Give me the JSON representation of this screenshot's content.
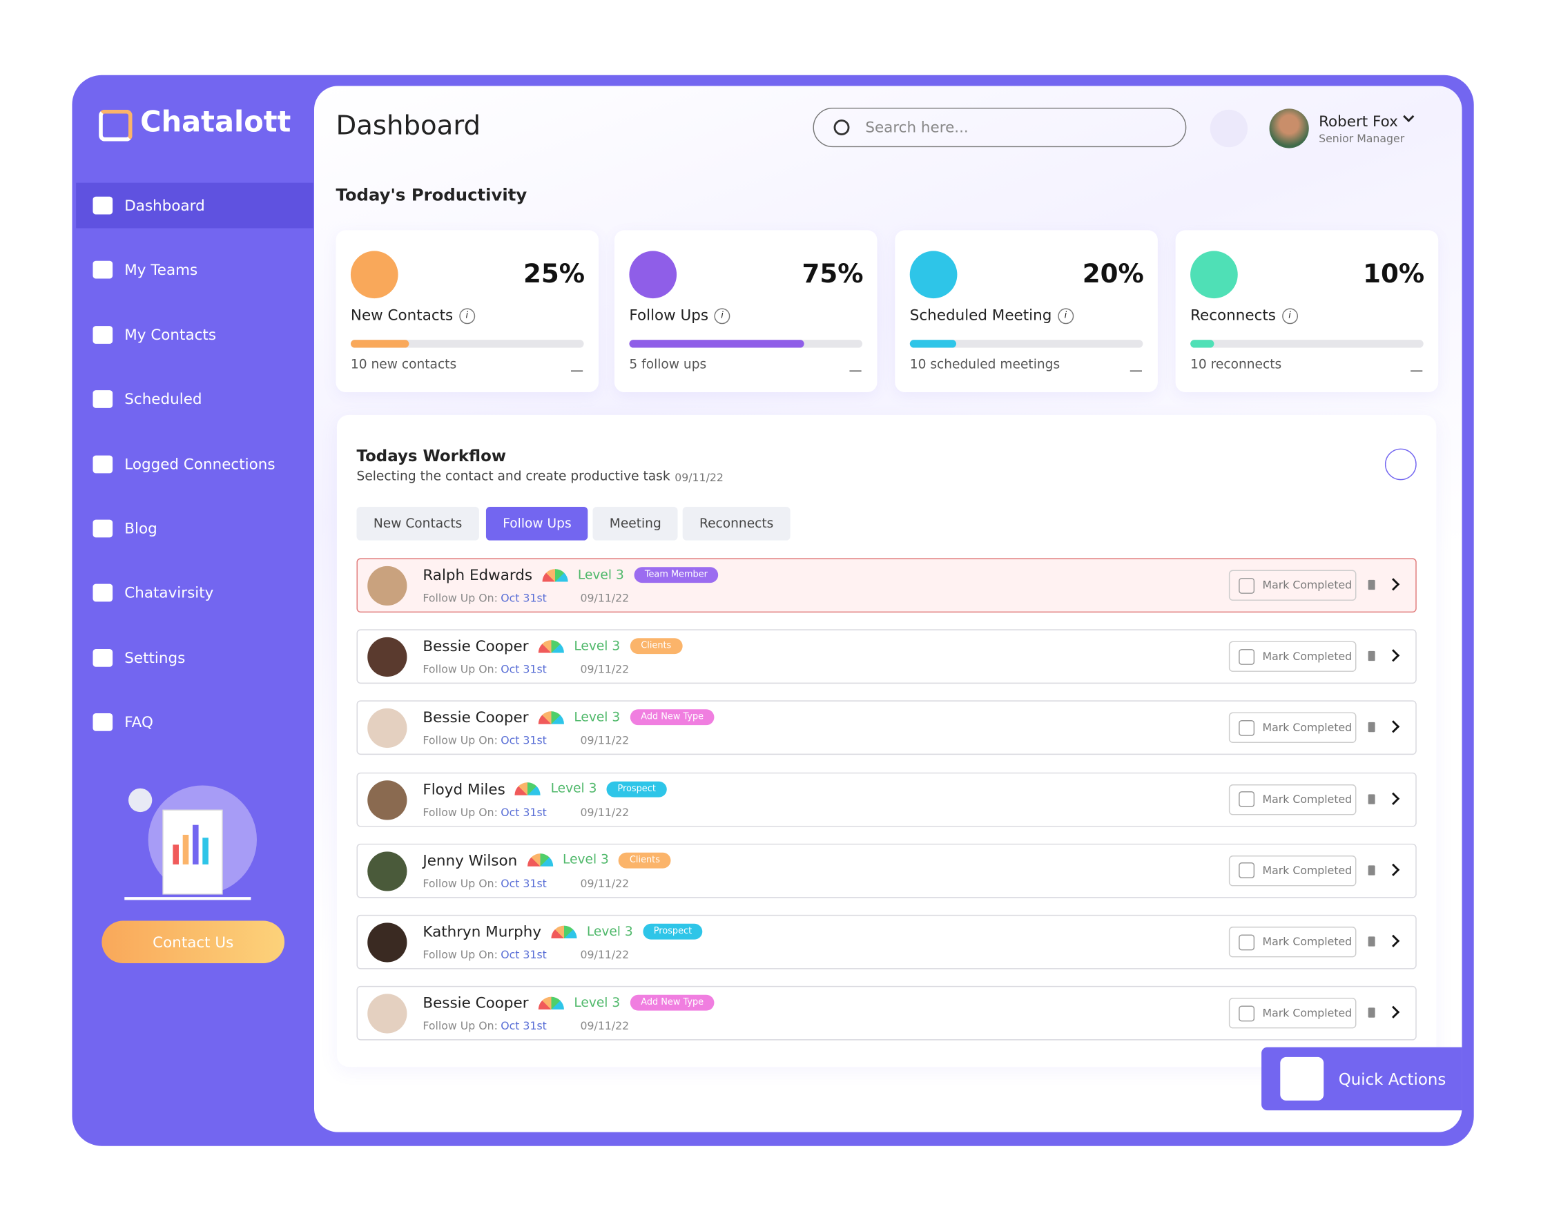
{
  "brand": "Chatalott",
  "nav": [
    "Dashboard",
    "My Teams",
    "My Contacts",
    "Scheduled",
    "Logged Connections",
    "Blog",
    "Chatavirsity",
    "Settings",
    "FAQ"
  ],
  "contact_button": "Contact Us",
  "header": {
    "title": "Dashboard",
    "search_placeholder": "Search here...",
    "user_name": "Robert Fox",
    "user_role": "Senior Manager"
  },
  "productivity": {
    "title": "Today's Productivity",
    "cards": [
      {
        "percent": "25%",
        "label": "New Contacts",
        "info": "i",
        "note": "10 new contacts",
        "color": "#f9a85a"
      },
      {
        "percent": "75%",
        "label": "Follow Ups",
        "info": "i",
        "note": "5 follow ups",
        "color": "#8f5ee8"
      },
      {
        "percent": "20%",
        "label": "Scheduled Meeting",
        "info": "i",
        "note": "10 scheduled meetings",
        "color": "#2ec5e8"
      },
      {
        "percent": "10%",
        "label": "Reconnects",
        "info": "i",
        "note": "10 reconnects",
        "color": "#4fe0b6"
      }
    ]
  },
  "workflow": {
    "title": "Todays Workflow",
    "subtitle": "Selecting the contact and create productive task",
    "date": "09/11/22",
    "tabs": [
      "New Contacts",
      "Follow Ups",
      "Meeting",
      "Reconnects"
    ],
    "rows": [
      {
        "name": "Ralph Edwards",
        "level": "Level 3",
        "tag": "Team Member",
        "tag_color": "#9b6cf0",
        "follow_label": "Follow Up On:",
        "follow_date": "Oct 31st",
        "date": "09/11/22",
        "action": "Mark Completed"
      },
      {
        "name": "Bessie Cooper",
        "level": "Level 3",
        "tag": "Clients",
        "tag_color": "#fbb46a",
        "follow_label": "Follow Up On:",
        "follow_date": "Oct 31st",
        "date": "09/11/22",
        "action": "Mark Completed"
      },
      {
        "name": "Bessie Cooper",
        "level": "Level 3",
        "tag": "Add New Type",
        "tag_color": "#f07ee0",
        "follow_label": "Follow Up On:",
        "follow_date": "Oct 31st",
        "date": "09/11/22",
        "action": "Mark Completed"
      },
      {
        "name": "Floyd Miles",
        "level": "Level 3",
        "tag": "Prospect",
        "tag_color": "#2ec5e8",
        "follow_label": "Follow Up On:",
        "follow_date": "Oct 31st",
        "date": "09/11/22",
        "action": "Mark Completed"
      },
      {
        "name": "Jenny Wilson",
        "level": "Level 3",
        "tag": "Clients",
        "tag_color": "#fbb46a",
        "follow_label": "Follow Up On:",
        "follow_date": "Oct 31st",
        "date": "09/11/22",
        "action": "Mark Completed"
      },
      {
        "name": "Kathryn Murphy",
        "level": "Level 3",
        "tag": "Prospect",
        "tag_color": "#2ec5e8",
        "follow_label": "Follow Up On:",
        "follow_date": "Oct 31st",
        "date": "09/11/22",
        "action": "Mark Completed"
      },
      {
        "name": "Bessie Cooper",
        "level": "Level 3",
        "tag": "Add New Type",
        "tag_color": "#f07ee0",
        "follow_label": "Follow Up On:",
        "follow_date": "Oct 31st",
        "date": "09/11/22",
        "action": "Mark Completed"
      }
    ]
  },
  "quick_actions": "Quick Actions"
}
